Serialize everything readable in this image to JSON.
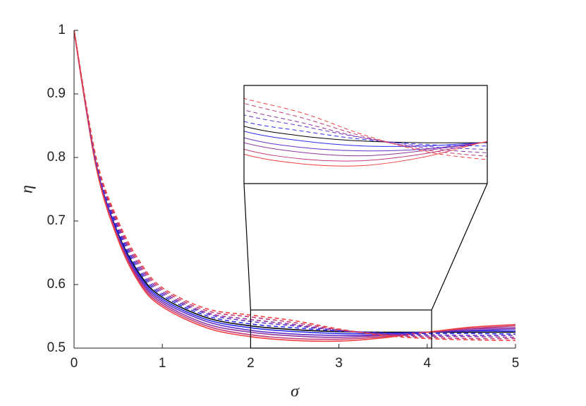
{
  "chart_data": {
    "type": "line",
    "xlabel": "σ",
    "ylabel": "η",
    "x": [
      0,
      0.25,
      0.5,
      0.75,
      1,
      1.5,
      2,
      2.5,
      3,
      3.5,
      4,
      4.5,
      5
    ],
    "xlim": [
      0,
      5
    ],
    "ylim": [
      0.5,
      1
    ],
    "xticks": [
      0,
      1,
      2,
      3,
      4,
      5
    ],
    "yticks": [
      0.5,
      0.6,
      0.7,
      0.8,
      0.9,
      1
    ],
    "inset": {
      "xlim": [
        2,
        4.05
      ],
      "ylim": [
        0.5,
        0.56
      ]
    },
    "series": [
      {
        "color": "#000000",
        "style": "solid",
        "values": [
          1,
          0.79,
          0.68,
          0.615,
          0.58,
          0.548,
          0.535,
          0.529,
          0.526,
          0.525,
          0.525,
          0.525,
          0.525
        ]
      },
      {
        "color": "#2b2bf0",
        "style": "solid",
        "values": [
          1,
          0.789,
          0.678,
          0.612,
          0.577,
          0.545,
          0.532,
          0.526,
          0.523,
          0.523,
          0.525,
          0.527,
          0.527
        ]
      },
      {
        "color": "#6030c8",
        "style": "solid",
        "values": [
          1,
          0.788,
          0.676,
          0.609,
          0.574,
          0.542,
          0.528,
          0.522,
          0.52,
          0.521,
          0.525,
          0.528,
          0.53
        ]
      },
      {
        "color": "#9035a0",
        "style": "solid",
        "values": [
          1,
          0.787,
          0.674,
          0.606,
          0.571,
          0.538,
          0.525,
          0.519,
          0.517,
          0.52,
          0.525,
          0.53,
          0.532
        ]
      },
      {
        "color": "#c03878",
        "style": "solid",
        "values": [
          1,
          0.786,
          0.672,
          0.603,
          0.568,
          0.535,
          0.521,
          0.515,
          0.514,
          0.518,
          0.525,
          0.531,
          0.535
        ]
      },
      {
        "color": "#f04040",
        "style": "solid",
        "values": [
          1,
          0.785,
          0.67,
          0.6,
          0.565,
          0.532,
          0.518,
          0.512,
          0.511,
          0.516,
          0.525,
          0.533,
          0.537
        ]
      },
      {
        "color": "#2b2bf0",
        "style": "dashed",
        "values": [
          1,
          0.792,
          0.684,
          0.619,
          0.583,
          0.551,
          0.538,
          0.532,
          0.527,
          0.524,
          0.523,
          0.523,
          0.522
        ]
      },
      {
        "color": "#6030c8",
        "style": "dashed",
        "values": [
          1,
          0.794,
          0.688,
          0.623,
          0.586,
          0.554,
          0.542,
          0.535,
          0.528,
          0.523,
          0.521,
          0.52,
          0.52
        ]
      },
      {
        "color": "#9035a0",
        "style": "dashed",
        "values": [
          1,
          0.796,
          0.692,
          0.627,
          0.589,
          0.556,
          0.545,
          0.537,
          0.528,
          0.522,
          0.519,
          0.518,
          0.517
        ]
      },
      {
        "color": "#c03878",
        "style": "dashed",
        "values": [
          1,
          0.798,
          0.696,
          0.631,
          0.592,
          0.559,
          0.549,
          0.54,
          0.529,
          0.521,
          0.517,
          0.515,
          0.515
        ]
      },
      {
        "color": "#f04040",
        "style": "dashed",
        "values": [
          1,
          0.8,
          0.7,
          0.635,
          0.595,
          0.562,
          0.552,
          0.543,
          0.53,
          0.52,
          0.515,
          0.513,
          0.512
        ]
      }
    ]
  }
}
